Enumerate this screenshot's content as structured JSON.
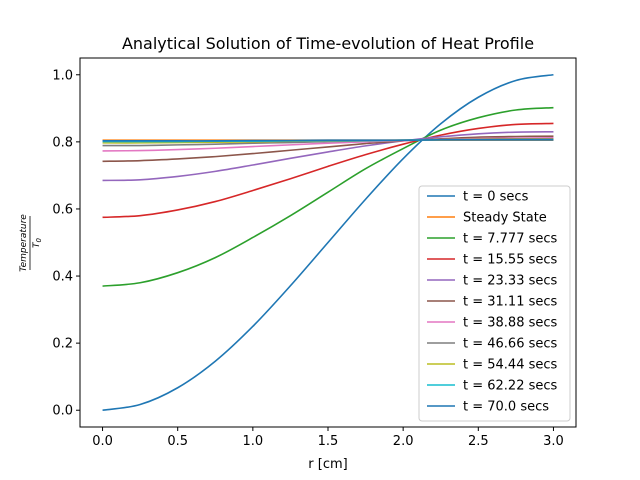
{
  "chart_data": {
    "type": "line",
    "title": "Analytical Solution of Time-evolution of Heat Profile",
    "xlabel": "r [cm]",
    "ylabel": {
      "numerator": "Temperature",
      "denominator": "T",
      "denominator_subscript": "0"
    },
    "xlim": [
      -0.15,
      3.15
    ],
    "ylim": [
      -0.05,
      1.05
    ],
    "xticks": [
      "0.0",
      "0.5",
      "1.0",
      "1.5",
      "2.0",
      "2.5",
      "3.0"
    ],
    "yticks": [
      "0.0",
      "0.2",
      "0.4",
      "0.6",
      "0.8",
      "1.0"
    ],
    "grid": false,
    "legend_position": "lower right",
    "x": [
      0.0,
      0.25,
      0.5,
      0.75,
      1.0,
      1.25,
      1.5,
      1.75,
      2.0,
      2.25,
      2.5,
      2.75,
      3.0
    ],
    "series": [
      {
        "name": "t = 0 secs",
        "color": "#1f77b4",
        "values": [
          0.0,
          0.017,
          0.067,
          0.146,
          0.25,
          0.371,
          0.5,
          0.629,
          0.75,
          0.854,
          0.933,
          0.983,
          1.0
        ]
      },
      {
        "name": "Steady State",
        "color": "#ff7f0e",
        "values": [
          0.805,
          0.805,
          0.805,
          0.805,
          0.805,
          0.805,
          0.805,
          0.805,
          0.805,
          0.805,
          0.805,
          0.805,
          0.805
        ]
      },
      {
        "name": "t = 7.777 secs",
        "color": "#2ca02c",
        "values": [
          0.37,
          0.38,
          0.41,
          0.455,
          0.515,
          0.58,
          0.65,
          0.72,
          0.78,
          0.835,
          0.872,
          0.895,
          0.902
        ]
      },
      {
        "name": "t = 15.55 secs",
        "color": "#d62728",
        "values": [
          0.575,
          0.58,
          0.597,
          0.622,
          0.655,
          0.69,
          0.727,
          0.762,
          0.793,
          0.82,
          0.84,
          0.852,
          0.855
        ]
      },
      {
        "name": "t = 23.33 secs",
        "color": "#9467bd",
        "values": [
          0.685,
          0.687,
          0.697,
          0.712,
          0.731,
          0.751,
          0.77,
          0.788,
          0.803,
          0.815,
          0.824,
          0.829,
          0.83
        ]
      },
      {
        "name": "t = 31.11 secs",
        "color": "#8c564b",
        "values": [
          0.742,
          0.744,
          0.749,
          0.756,
          0.765,
          0.775,
          0.785,
          0.795,
          0.803,
          0.809,
          0.814,
          0.816,
          0.817
        ]
      },
      {
        "name": "t = 38.88 secs",
        "color": "#e377c2",
        "values": [
          0.773,
          0.774,
          0.777,
          0.781,
          0.786,
          0.791,
          0.796,
          0.8,
          0.804,
          0.807,
          0.81,
          0.811,
          0.812
        ]
      },
      {
        "name": "t = 46.66 secs",
        "color": "#7f7f7f",
        "values": [
          0.789,
          0.789,
          0.791,
          0.793,
          0.796,
          0.798,
          0.801,
          0.803,
          0.805,
          0.807,
          0.808,
          0.809,
          0.809
        ]
      },
      {
        "name": "t = 54.44 secs",
        "color": "#bcbd22",
        "values": [
          0.797,
          0.797,
          0.798,
          0.799,
          0.8,
          0.802,
          0.803,
          0.804,
          0.805,
          0.806,
          0.807,
          0.807,
          0.807
        ]
      },
      {
        "name": "t = 62.22 secs",
        "color": "#17becf",
        "values": [
          0.801,
          0.801,
          0.801,
          0.802,
          0.802,
          0.803,
          0.804,
          0.804,
          0.805,
          0.806,
          0.806,
          0.806,
          0.806
        ]
      },
      {
        "name": "t = 70.0 secs",
        "color": "#1f77b4",
        "values": [
          0.803,
          0.803,
          0.803,
          0.803,
          0.804,
          0.804,
          0.805,
          0.805,
          0.805,
          0.806,
          0.806,
          0.806,
          0.806
        ]
      }
    ]
  }
}
